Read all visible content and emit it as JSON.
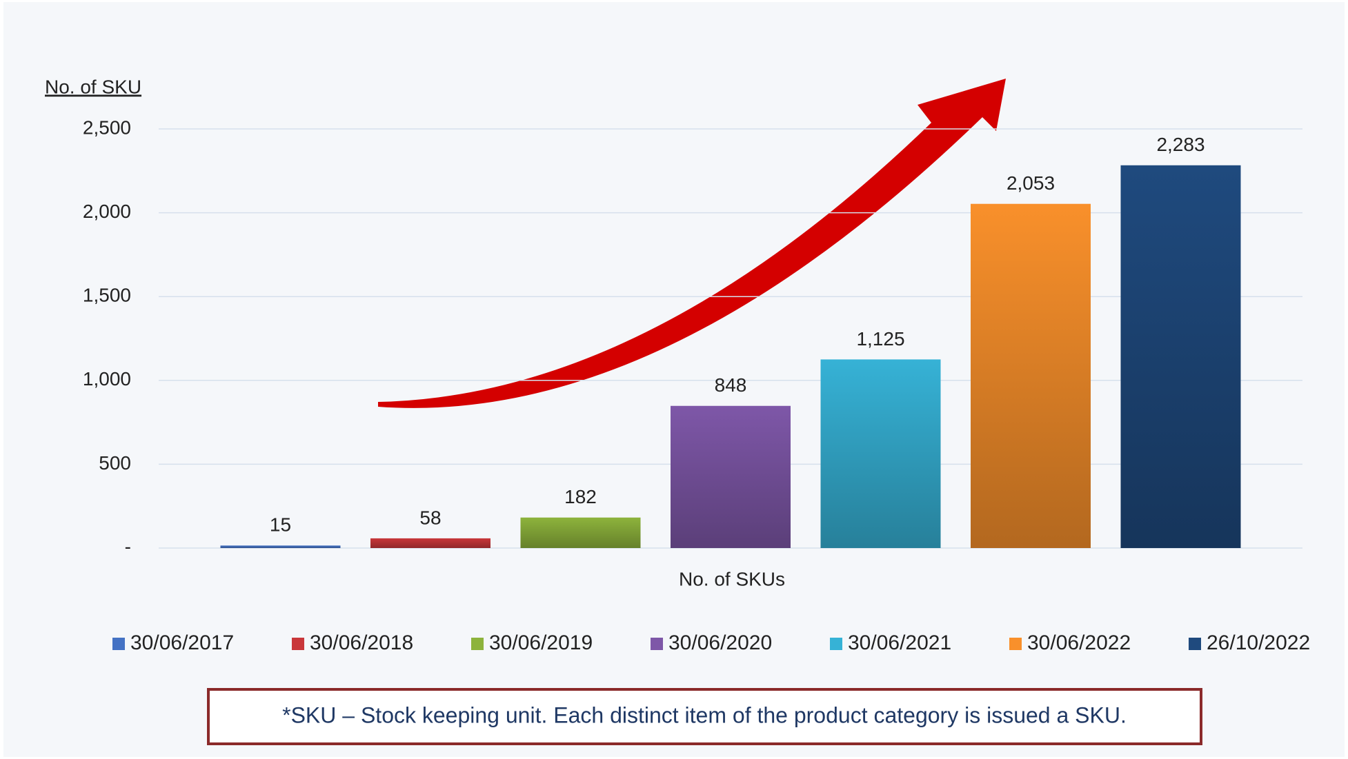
{
  "chart_data": {
    "type": "bar",
    "y_label": "No. of SKU",
    "x_label": "No. of SKUs",
    "categories": [
      "No. of SKUs"
    ],
    "footnote": "*SKU – Stock keeping unit. Each distinct item of the product category is issued a SKU.",
    "series": [
      {
        "name": "30/06/2017",
        "color": "#4472c4",
        "values": [
          15
        ]
      },
      {
        "name": "30/06/2018",
        "color": "#c9373a",
        "values": [
          58
        ]
      },
      {
        "name": "30/06/2019",
        "color": "#8db33c",
        "values": [
          182
        ]
      },
      {
        "name": "30/06/2020",
        "color": "#7e57a8",
        "values": [
          848
        ]
      },
      {
        "name": "30/06/2021",
        "color": "#36b2d6",
        "values": [
          1125
        ],
        "value_labels": [
          "1,125"
        ]
      },
      {
        "name": "30/06/2022",
        "color": "#f9902b",
        "values": [
          2053
        ],
        "value_labels": [
          "2,053"
        ]
      },
      {
        "name": "26/10/2022",
        "color": "#1f4a7e",
        "values": [
          2283
        ],
        "value_labels": [
          "2,283"
        ]
      }
    ],
    "ylim": [
      0,
      2500
    ],
    "yticks": [
      {
        "value": 0,
        "label": "-"
      },
      500,
      {
        "value": 1000,
        "label": "1,000"
      },
      {
        "value": 1500,
        "label": "1,500"
      },
      {
        "value": 2000,
        "label": "2,000"
      },
      {
        "value": 2500,
        "label": "2,500"
      }
    ],
    "grid": true,
    "legend": "bottom"
  }
}
